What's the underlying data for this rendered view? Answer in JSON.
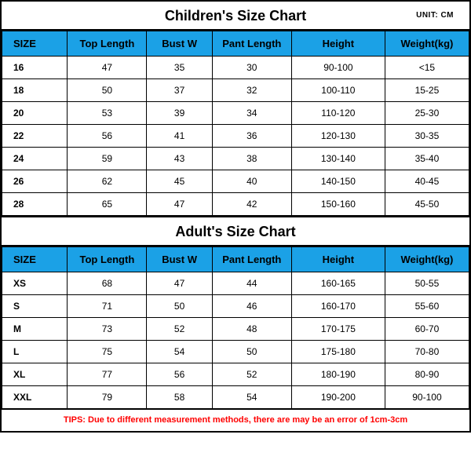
{
  "unit_label": "UNIT: CM",
  "children": {
    "title": "Children's Size Chart",
    "columns": [
      "SIZE",
      "Top Length",
      "Bust W",
      "Pant Length",
      "Height",
      "Weight(kg)"
    ],
    "rows": [
      [
        "16",
        "47",
        "35",
        "30",
        "90-100",
        "<15"
      ],
      [
        "18",
        "50",
        "37",
        "32",
        "100-110",
        "15-25"
      ],
      [
        "20",
        "53",
        "39",
        "34",
        "110-120",
        "25-30"
      ],
      [
        "22",
        "56",
        "41",
        "36",
        "120-130",
        "30-35"
      ],
      [
        "24",
        "59",
        "43",
        "38",
        "130-140",
        "35-40"
      ],
      [
        "26",
        "62",
        "45",
        "40",
        "140-150",
        "40-45"
      ],
      [
        "28",
        "65",
        "47",
        "42",
        "150-160",
        "45-50"
      ]
    ]
  },
  "adult": {
    "title": "Adult's Size Chart",
    "columns": [
      "SIZE",
      "Top Length",
      "Bust W",
      "Pant Length",
      "Height",
      "Weight(kg)"
    ],
    "rows": [
      [
        "XS",
        "68",
        "47",
        "44",
        "160-165",
        "50-55"
      ],
      [
        "S",
        "71",
        "50",
        "46",
        "160-170",
        "55-60"
      ],
      [
        "M",
        "73",
        "52",
        "48",
        "170-175",
        "60-70"
      ],
      [
        "L",
        "75",
        "54",
        "50",
        "175-180",
        "70-80"
      ],
      [
        "XL",
        "77",
        "56",
        "52",
        "180-190",
        "80-90"
      ],
      [
        "XXL",
        "79",
        "58",
        "54",
        "190-200",
        "90-100"
      ]
    ]
  },
  "tips": "TIPS: Due to different measurement methods, there are may be an error of 1cm-3cm",
  "style": {
    "header_bg": "#1ba1e6",
    "border_color": "#000000",
    "tips_color": "#ff0000",
    "background": "#ffffff",
    "title_fontsize": 18,
    "header_fontsize": 13,
    "cell_fontsize": 12,
    "unit_fontsize": 10,
    "tips_fontsize": 11,
    "column_widths_pct": [
      14,
      17,
      14,
      17,
      20,
      18
    ]
  }
}
